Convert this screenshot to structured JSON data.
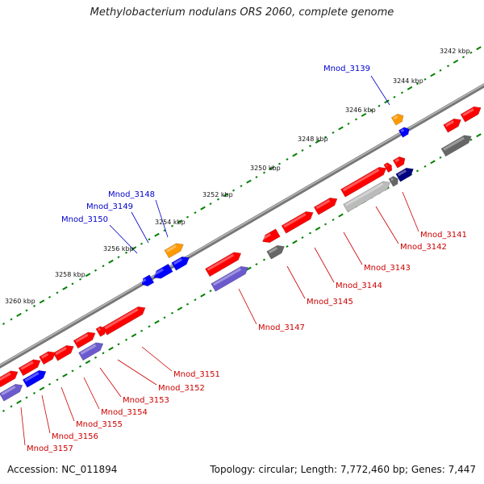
{
  "title": "Methylobacterium nodulans ORS 2060, complete genome",
  "footer": {
    "accession": "Accession: NC_011894",
    "summary": "Topology: circular; Length: 7,772,460 bp; Genes: 7,447"
  },
  "colors": {
    "forward_gene": "#ff0000",
    "reverse_gene": "#0000ff",
    "rna_gene": "#ff9900",
    "pseudo_gene": "#666666",
    "label_forward": "#cc0000",
    "label_reverse": "#0000cc",
    "backbone": "#888888",
    "tick": "#008000"
  },
  "scale_ticks": [
    {
      "label": "3242 kbp"
    },
    {
      "label": "3244 kbp"
    },
    {
      "label": "3246 kbp"
    },
    {
      "label": "3248 kbp"
    },
    {
      "label": "3250 kbp"
    },
    {
      "label": "3252 kbp"
    },
    {
      "label": "3254 kbp"
    },
    {
      "label": "3256 kbp"
    },
    {
      "label": "3258 kbp"
    },
    {
      "label": "3260 kbp"
    }
  ],
  "upper_labels": [
    {
      "text": "Mnod_3139"
    },
    {
      "text": "Mnod_3148"
    },
    {
      "text": "Mnod_3149"
    },
    {
      "text": "Mnod_3150"
    }
  ],
  "lower_labels": [
    {
      "text": "Mnod_3141"
    },
    {
      "text": "Mnod_3142"
    },
    {
      "text": "Mnod_3143"
    },
    {
      "text": "Mnod_3144"
    },
    {
      "text": "Mnod_3145"
    },
    {
      "text": "Mnod_3147"
    },
    {
      "text": "Mnod_3151"
    },
    {
      "text": "Mnod_3152"
    },
    {
      "text": "Mnod_3153"
    },
    {
      "text": "Mnod_3154"
    },
    {
      "text": "Mnod_3155"
    },
    {
      "text": "Mnod_3156"
    },
    {
      "text": "Mnod_3157"
    }
  ]
}
